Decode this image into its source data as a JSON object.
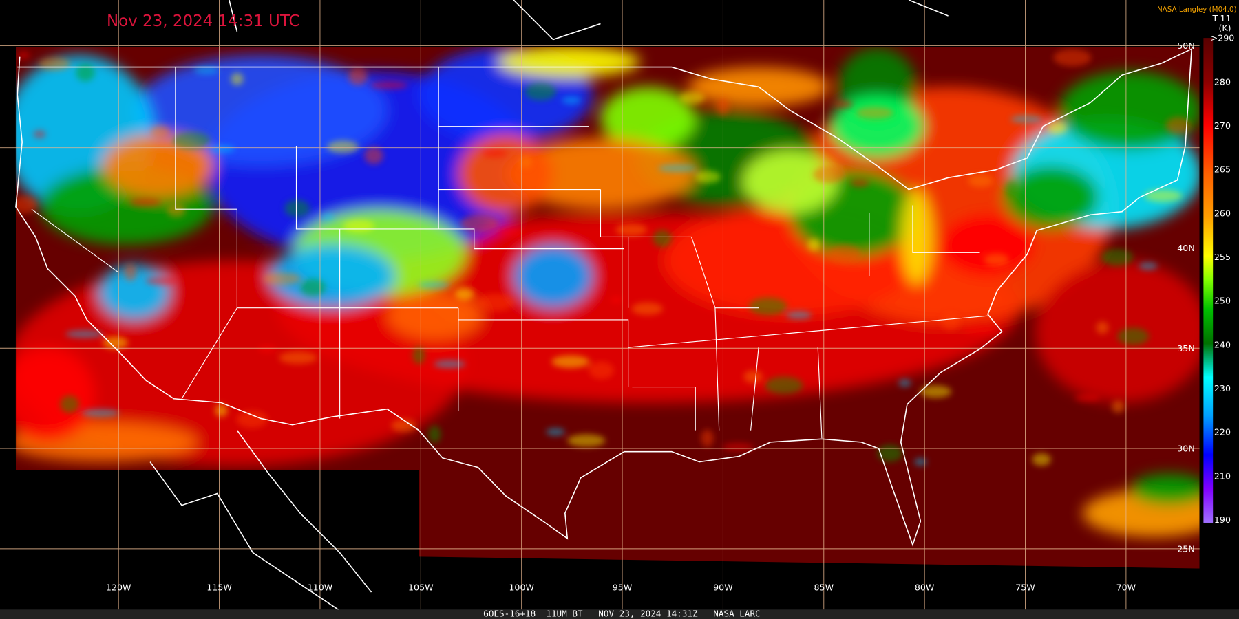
{
  "header": {
    "title": "Nov 23, 2024 14:31 UTC",
    "source": "NASA Langley (M04.0)"
  },
  "colorbar": {
    "title": "T-11",
    "unit": "(K)",
    "labels": [
      ">290",
      "280",
      "270",
      "265",
      "260",
      "255",
      "250",
      "240",
      "230",
      "220",
      "210",
      "190"
    ]
  },
  "grid": {
    "longitudes": [
      "120W",
      "115W",
      "110W",
      "105W",
      "100W",
      "95W",
      "90W",
      "85W",
      "80W",
      "75W",
      "70W"
    ],
    "latitudes": [
      "50N",
      "40N",
      "35N",
      "30N",
      "25N"
    ]
  },
  "footer": "GOES-16+18  11UM BT   NOV 23, 2024 14:31Z   NASA LARC"
}
